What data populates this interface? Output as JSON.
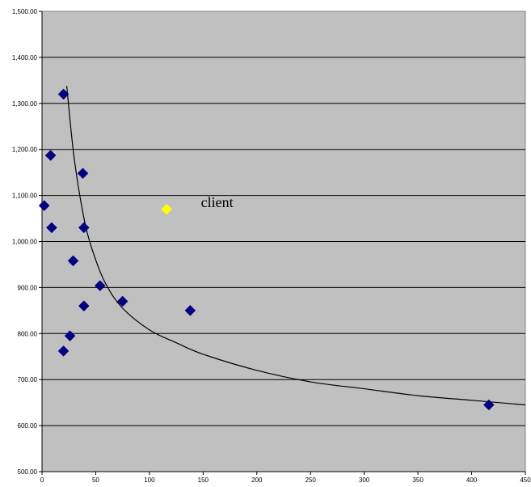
{
  "chart_data": {
    "type": "scatter",
    "title": "",
    "xlabel": "",
    "ylabel": "",
    "xlim": [
      0,
      450
    ],
    "ylim": [
      500,
      1500
    ],
    "x_ticks": [
      0,
      50,
      100,
      150,
      200,
      250,
      300,
      350,
      400,
      450
    ],
    "x_tick_labels": [
      "0",
      "50",
      "100",
      "150",
      "200",
      "250",
      "300",
      "350",
      "400",
      "450"
    ],
    "y_ticks": [
      500,
      600,
      700,
      800,
      900,
      1000,
      1100,
      1200,
      1300,
      1400,
      1500
    ],
    "y_tick_labels": [
      "500.00",
      "600.00",
      "700.00",
      "800.00",
      "900.00",
      "1,000.00",
      "1,100.00",
      "1,200.00",
      "1,300.00",
      "1,400.00",
      "1,500.00"
    ],
    "grid": "horizontal",
    "legend": "none",
    "plot_background": "#c0c0c0",
    "series": [
      {
        "marker": "diamond",
        "color": "#000080",
        "points": [
          {
            "x": 2,
            "y": 1078
          },
          {
            "x": 8,
            "y": 1187
          },
          {
            "x": 9,
            "y": 1030
          },
          {
            "x": 20,
            "y": 1320
          },
          {
            "x": 20,
            "y": 762
          },
          {
            "x": 26,
            "y": 795
          },
          {
            "x": 29,
            "y": 958
          },
          {
            "x": 38,
            "y": 1148
          },
          {
            "x": 39,
            "y": 1030
          },
          {
            "x": 39,
            "y": 860
          },
          {
            "x": 54,
            "y": 904
          },
          {
            "x": 75,
            "y": 870
          },
          {
            "x": 138,
            "y": 850
          },
          {
            "x": 416,
            "y": 645
          }
        ]
      },
      {
        "marker": "diamond",
        "color": "#ffff00",
        "points": [
          {
            "x": 116,
            "y": 1070
          }
        ]
      }
    ],
    "trendline": {
      "type": "power",
      "color": "#000000",
      "points": [
        {
          "x": 23,
          "y": 1338
        },
        {
          "x": 30,
          "y": 1180
        },
        {
          "x": 40,
          "y": 1040
        },
        {
          "x": 50,
          "y": 960
        },
        {
          "x": 60,
          "y": 905
        },
        {
          "x": 75,
          "y": 855
        },
        {
          "x": 100,
          "y": 808
        },
        {
          "x": 125,
          "y": 780
        },
        {
          "x": 150,
          "y": 755
        },
        {
          "x": 200,
          "y": 720
        },
        {
          "x": 250,
          "y": 695
        },
        {
          "x": 300,
          "y": 680
        },
        {
          "x": 350,
          "y": 665
        },
        {
          "x": 400,
          "y": 655
        },
        {
          "x": 450,
          "y": 645
        }
      ]
    },
    "annotations": [
      {
        "text": "client",
        "x": 148,
        "y": 1075
      }
    ]
  }
}
